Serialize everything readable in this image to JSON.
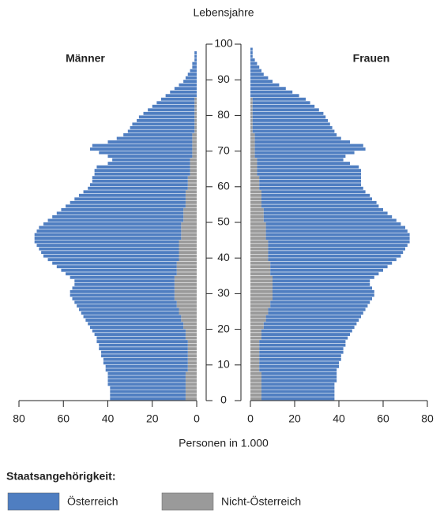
{
  "chart_data": {
    "type": "population_pyramid",
    "y_label": "Lebensjahre",
    "x_label": "Personen in 1.000",
    "left_label": "Männer",
    "right_label": "Frauen",
    "legend_title": "Staatsangehörigkeit:",
    "ylim": [
      0,
      100
    ],
    "yticks": [
      0,
      10,
      20,
      30,
      40,
      50,
      60,
      70,
      80,
      90,
      100
    ],
    "xlim": [
      0,
      80
    ],
    "xticks": [
      0,
      20,
      40,
      60,
      80
    ],
    "series": [
      {
        "name": "Nicht-Österreich",
        "color": "#9a9a9a",
        "left": [
          5,
          5,
          5,
          5,
          5,
          5,
          5,
          5,
          4,
          4,
          4,
          4,
          4,
          4,
          4,
          4,
          4,
          5,
          5,
          5,
          6,
          6,
          7,
          7,
          8,
          8,
          9,
          9,
          10,
          10,
          10,
          10,
          10,
          10,
          10,
          9,
          9,
          9,
          9,
          8,
          8,
          8,
          8,
          8,
          8,
          7,
          7,
          7,
          7,
          7,
          6,
          6,
          6,
          6,
          5,
          5,
          5,
          5,
          5,
          4,
          4,
          4,
          4,
          3,
          3,
          3,
          3,
          3,
          2,
          2,
          2,
          2,
          2,
          2,
          2,
          1,
          1,
          1,
          1,
          1,
          1,
          1,
          1,
          1,
          1,
          0,
          0,
          0,
          0,
          0,
          0,
          0,
          0,
          0,
          0,
          0,
          0,
          0,
          0,
          0,
          0
        ],
        "right": [
          5,
          5,
          5,
          5,
          5,
          5,
          5,
          5,
          4,
          4,
          4,
          4,
          4,
          4,
          4,
          4,
          4,
          5,
          5,
          5,
          6,
          6,
          7,
          7,
          8,
          8,
          9,
          9,
          10,
          10,
          10,
          10,
          10,
          10,
          10,
          9,
          9,
          9,
          9,
          8,
          8,
          8,
          8,
          8,
          8,
          7,
          7,
          7,
          7,
          7,
          6,
          6,
          6,
          6,
          5,
          5,
          5,
          5,
          5,
          4,
          4,
          4,
          4,
          3,
          3,
          3,
          3,
          3,
          2,
          2,
          2,
          2,
          2,
          2,
          2,
          1,
          1,
          1,
          1,
          1,
          1,
          1,
          1,
          1,
          1,
          0,
          0,
          0,
          0,
          0,
          0,
          0,
          0,
          0,
          0,
          0,
          0,
          0,
          0,
          0,
          0
        ]
      },
      {
        "name": "Österreich",
        "color": "#4f7ec1",
        "left": [
          34,
          34,
          34,
          34,
          35,
          35,
          35,
          35,
          37,
          37,
          38,
          38,
          39,
          39,
          40,
          40,
          41,
          40,
          41,
          42,
          42,
          43,
          43,
          44,
          44,
          45,
          45,
          46,
          46,
          47,
          47,
          46,
          45,
          45,
          47,
          50,
          52,
          54,
          56,
          59,
          61,
          62,
          63,
          64,
          65,
          66,
          66,
          65,
          64,
          62,
          61,
          59,
          57,
          55,
          54,
          52,
          50,
          48,
          46,
          45,
          44,
          43,
          43,
          43,
          43,
          42,
          37,
          35,
          38,
          42,
          46,
          45,
          38,
          34,
          31,
          30,
          29,
          28,
          26,
          25,
          23,
          21,
          19,
          17,
          15,
          14,
          12,
          10,
          8,
          6,
          5,
          4,
          3,
          2,
          2,
          1,
          1,
          1,
          0,
          0,
          0
        ],
        "right": [
          33,
          33,
          33,
          33,
          33,
          34,
          34,
          34,
          35,
          36,
          36,
          37,
          37,
          38,
          38,
          39,
          39,
          39,
          40,
          41,
          41,
          42,
          42,
          43,
          43,
          44,
          44,
          45,
          45,
          46,
          46,
          45,
          44,
          44,
          46,
          49,
          51,
          53,
          55,
          58,
          60,
          61,
          62,
          63,
          64,
          65,
          65,
          64,
          63,
          61,
          60,
          58,
          56,
          54,
          53,
          52,
          50,
          49,
          47,
          47,
          46,
          46,
          46,
          47,
          47,
          46,
          42,
          39,
          41,
          45,
          50,
          49,
          43,
          39,
          37,
          37,
          36,
          35,
          34,
          33,
          32,
          30,
          28,
          26,
          24,
          22,
          19,
          16,
          13,
          10,
          8,
          6,
          5,
          4,
          3,
          2,
          1,
          1,
          1,
          0,
          0
        ]
      }
    ]
  }
}
